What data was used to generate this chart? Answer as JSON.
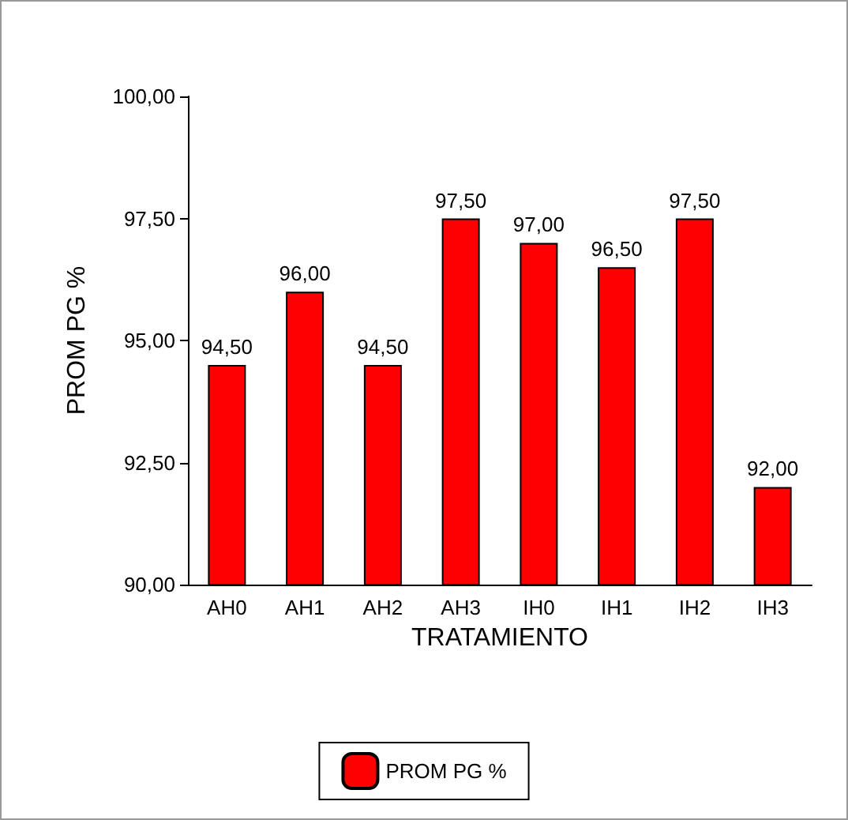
{
  "chart_data": {
    "type": "bar",
    "xlabel": "TRATAMIENTO",
    "ylabel": "PROM PG %",
    "categories": [
      "AH0",
      "AH1",
      "AH2",
      "AH3",
      "IH0",
      "IH1",
      "IH2",
      "IH3"
    ],
    "series": [
      {
        "name": "PROM PG %",
        "color": "#ff0000",
        "values": [
          94.5,
          96.0,
          94.5,
          97.5,
          97.0,
          96.5,
          97.5,
          92.0
        ],
        "value_labels": [
          "94,50",
          "96,00",
          "94,50",
          "97,50",
          "97,00",
          "96,50",
          "97,50",
          "92,00"
        ]
      }
    ],
    "ylim": [
      90,
      100
    ],
    "yticks": [
      {
        "value": 90,
        "label": "90,00"
      },
      {
        "value": 92.5,
        "label": "92,50"
      },
      {
        "value": 95,
        "label": "95,00"
      },
      {
        "value": 97.5,
        "label": "97,50"
      },
      {
        "value": 100,
        "label": "100,00"
      }
    ],
    "grid": false,
    "legend": "bottom"
  }
}
